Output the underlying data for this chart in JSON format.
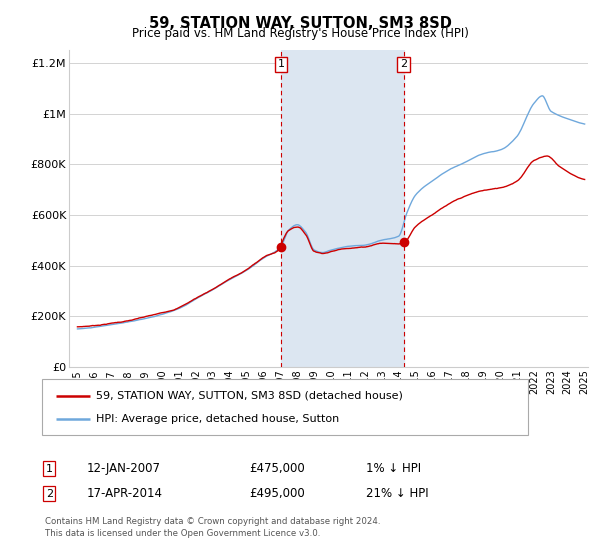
{
  "title": "59, STATION WAY, SUTTON, SM3 8SD",
  "subtitle": "Price paid vs. HM Land Registry's House Price Index (HPI)",
  "legend_line1": "59, STATION WAY, SUTTON, SM3 8SD (detached house)",
  "legend_line2": "HPI: Average price, detached house, Sutton",
  "footnote1": "Contains HM Land Registry data © Crown copyright and database right 2024.",
  "footnote2": "This data is licensed under the Open Government Licence v3.0.",
  "annotation1_date": "12-JAN-2007",
  "annotation1_price": "£475,000",
  "annotation1_hpi": "1% ↓ HPI",
  "annotation2_date": "17-APR-2014",
  "annotation2_price": "£495,000",
  "annotation2_hpi": "21% ↓ HPI",
  "marker1_x": 2007.04,
  "marker1_y": 475000,
  "marker2_x": 2014.29,
  "marker2_y": 495000,
  "vline1_x": 2007.04,
  "vline2_x": 2014.29,
  "shade_x1": 2007.04,
  "shade_x2": 2014.29,
  "xlim": [
    1994.5,
    2025.2
  ],
  "ylim": [
    0,
    1250000
  ],
  "yticks": [
    0,
    200000,
    400000,
    600000,
    800000,
    1000000,
    1200000
  ],
  "ytick_labels": [
    "£0",
    "£200K",
    "£400K",
    "£600K",
    "£800K",
    "£1M",
    "£1.2M"
  ],
  "color_hpi": "#6fa8dc",
  "color_price": "#cc0000",
  "color_shade": "#dce6f1",
  "color_vline": "#cc0000",
  "background_color": "#ffffff",
  "grid_color": "#cccccc"
}
